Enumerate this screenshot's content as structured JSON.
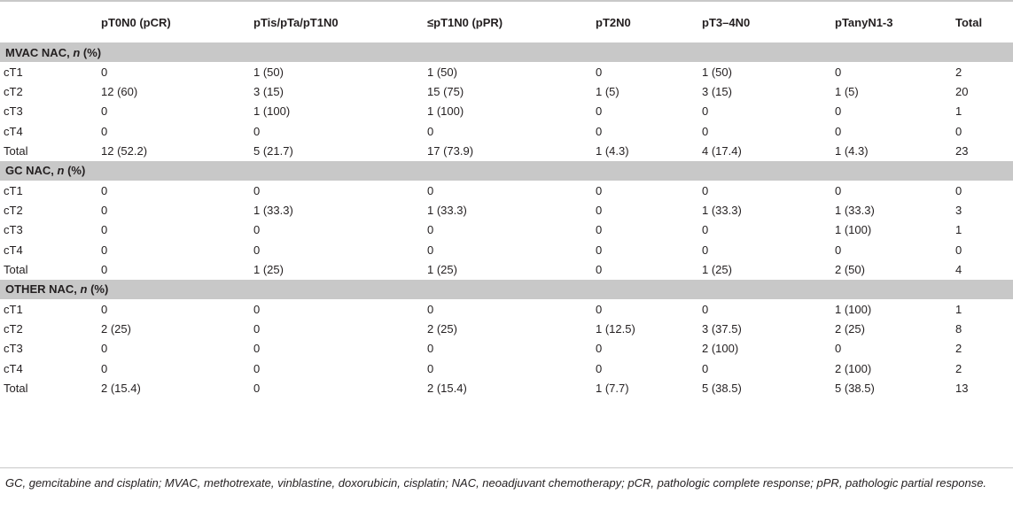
{
  "columns": [
    "",
    "pT0N0 (pCR)",
    "pTis/pTa/pT1N0",
    "≤pT1N0 (pPR)",
    "pT2N0",
    "pT3–4N0",
    "pTanyN1-3",
    "Total"
  ],
  "sections": [
    {
      "title_prefix": "MVAC NAC, ",
      "title_n": "n",
      "title_suffix": " (%)",
      "rows": [
        [
          "cT1",
          "0",
          "1 (50)",
          "1 (50)",
          "0",
          "1 (50)",
          "0",
          "2"
        ],
        [
          "cT2",
          "12 (60)",
          "3 (15)",
          "15 (75)",
          "1 (5)",
          "3 (15)",
          "1 (5)",
          "20"
        ],
        [
          "cT3",
          "0",
          "1 (100)",
          "1 (100)",
          "0",
          "0",
          "0",
          "1"
        ],
        [
          "cT4",
          "0",
          "0",
          "0",
          "0",
          "0",
          "0",
          "0"
        ],
        [
          "Total",
          "12 (52.2)",
          "5 (21.7)",
          "17 (73.9)",
          "1 (4.3)",
          "4 (17.4)",
          "1 (4.3)",
          "23"
        ]
      ]
    },
    {
      "title_prefix": "GC NAC, ",
      "title_n": "n",
      "title_suffix": " (%)",
      "rows": [
        [
          "cT1",
          "0",
          "0",
          "0",
          "0",
          "0",
          "0",
          "0"
        ],
        [
          "cT2",
          "0",
          "1 (33.3)",
          "1 (33.3)",
          "0",
          "1 (33.3)",
          "1 (33.3)",
          "3"
        ],
        [
          "cT3",
          "0",
          "0",
          "0",
          "0",
          "0",
          "1 (100)",
          "1"
        ],
        [
          "cT4",
          "0",
          "0",
          "0",
          "0",
          "0",
          "0",
          "0"
        ],
        [
          "Total",
          "0",
          "1 (25)",
          "1 (25)",
          "0",
          "1 (25)",
          "2 (50)",
          "4"
        ]
      ]
    },
    {
      "title_prefix": "OTHER NAC, ",
      "title_n": "n",
      "title_suffix": " (%)",
      "rows": [
        [
          "cT1",
          "0",
          "0",
          "0",
          "0",
          "0",
          "1 (100)",
          "1"
        ],
        [
          "cT2",
          "2 (25)",
          "0",
          "2 (25)",
          "1 (12.5)",
          "3 (37.5)",
          "2 (25)",
          "8"
        ],
        [
          "cT3",
          "0",
          "0",
          "0",
          "0",
          "2 (100)",
          "0",
          "2"
        ],
        [
          "cT4",
          "0",
          "0",
          "0",
          "0",
          "0",
          "2 (100)",
          "2"
        ],
        [
          "Total",
          "2 (15.4)",
          "0",
          "2 (15.4)",
          "1 (7.7)",
          "5 (38.5)",
          "5 (38.5)",
          "13"
        ]
      ]
    }
  ],
  "footnote": "GC, gemcitabine and cisplatin; MVAC, methotrexate, vinblastine, doxorubicin, cisplatin; NAC, neoadjuvant chemotherapy; pCR, pathologic complete response; pPR, pathologic partial response."
}
